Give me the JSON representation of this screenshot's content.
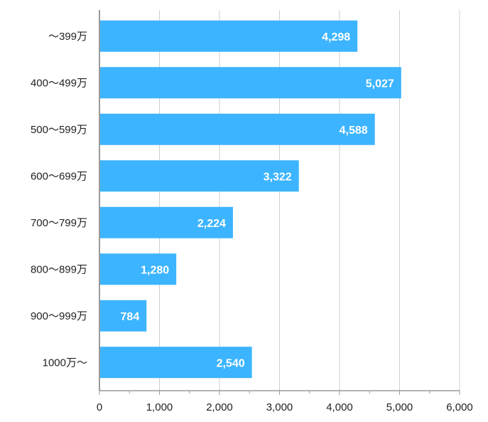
{
  "chart_data": {
    "type": "bar",
    "orientation": "horizontal",
    "title": "",
    "xlabel": "",
    "ylabel": "",
    "categories": [
      "～399万",
      "400～499万",
      "500～599万",
      "600～699万",
      "700～799万",
      "800～899万",
      "900～999万",
      "1000万～"
    ],
    "values": [
      4298,
      5027,
      4588,
      3322,
      2224,
      1280,
      784,
      2540
    ],
    "value_labels": [
      "4,298",
      "5,027",
      "4,588",
      "3,322",
      "2,224",
      "1,280",
      "784",
      "2,540"
    ],
    "xlim": [
      0,
      6000
    ],
    "xticks": [
      0,
      1000,
      2000,
      3000,
      4000,
      5000,
      6000
    ],
    "xtick_labels": [
      "0",
      "1,000",
      "2,000",
      "3,000",
      "4,000",
      "5,000",
      "6,000"
    ],
    "grid": true,
    "legend": "none",
    "colors": {
      "bar": "#3cb4ff",
      "grid": "#cfcfcf",
      "axis": "#9a9a9a"
    }
  }
}
